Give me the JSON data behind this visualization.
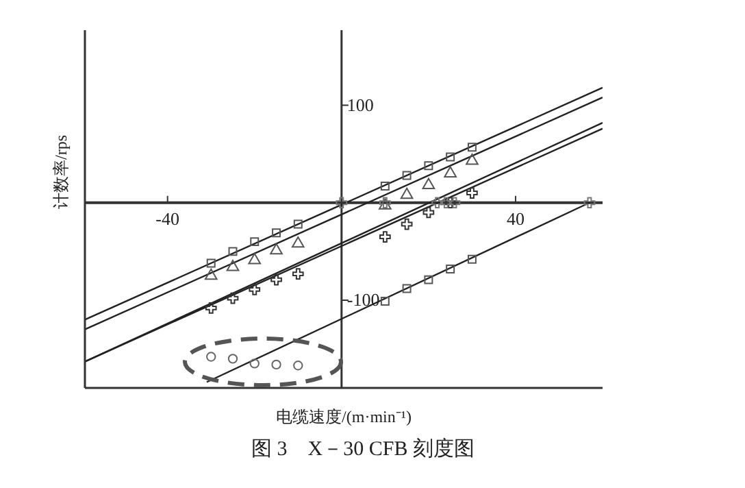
{
  "chart_data": {
    "type": "scatter",
    "title": "图 3　X－30 CFB 刻度图",
    "xlabel": "电缆速度/(m·min⁻¹)",
    "ylabel": "计数率/rps",
    "xlim": [
      -59,
      60
    ],
    "ylim": [
      -190,
      177
    ],
    "xticks": [
      -40,
      40
    ],
    "yticks": [
      100,
      -100
    ],
    "grid": false,
    "series": [
      {
        "type": "line",
        "color": "#222222",
        "marker": "none",
        "x": [
          -59,
          60
        ],
        "values": [
          -120,
          118
        ]
      },
      {
        "type": "line",
        "color": "#222222",
        "marker": "none",
        "x": [
          -59,
          60
        ],
        "values": [
          -130,
          108
        ]
      },
      {
        "type": "line",
        "color": "#222222",
        "marker": "none",
        "x": [
          -59,
          60
        ],
        "values": [
          -163,
          82
        ]
      },
      {
        "type": "line",
        "color": "#222222",
        "marker": "none",
        "x": [
          -59,
          60
        ],
        "values": [
          -163,
          76
        ]
      },
      {
        "type": "line",
        "color": "#222222",
        "marker": "none",
        "x": [
          -31,
          57
        ],
        "values": [
          -184,
          0
        ]
      },
      {
        "color": "#555555",
        "marker": "square",
        "x": [
          -30,
          -25,
          -20,
          -15,
          -10,
          10,
          15,
          20,
          25,
          30
        ],
        "values": [
          -62,
          -50,
          -40,
          -31,
          -22,
          17,
          28,
          38,
          47,
          57
        ]
      },
      {
        "color": "#555555",
        "marker": "triangle",
        "x": [
          -30,
          -25,
          -20,
          -15,
          -10,
          10,
          15,
          20,
          25,
          30
        ],
        "values": [
          -75,
          -66,
          -59,
          -49,
          -42,
          -3,
          8,
          18,
          30,
          43
        ]
      },
      {
        "color": "#333333",
        "marker": "cross",
        "x": [
          -30,
          -25,
          -20,
          -15,
          -10,
          10,
          15,
          20,
          25,
          30
        ],
        "values": [
          -108,
          -98,
          -89,
          -79,
          -73,
          -35,
          -22,
          -10,
          0,
          10
        ]
      },
      {
        "color": "#555555",
        "marker": "square",
        "x": [
          10,
          15,
          20,
          25,
          30
        ],
        "values": [
          -101,
          -88,
          -79,
          -68,
          -58
        ]
      },
      {
        "color": "#666666",
        "marker": "circle",
        "x": [
          -30,
          -25,
          -20,
          -15,
          -10
        ],
        "values": [
          -158,
          -160,
          -165,
          -166,
          -167
        ]
      },
      {
        "color": "#777777",
        "marker": "cross",
        "x": [
          0,
          10,
          22,
          24,
          26,
          57
        ],
        "values": [
          0,
          0,
          0,
          0,
          0,
          0
        ]
      }
    ]
  }
}
